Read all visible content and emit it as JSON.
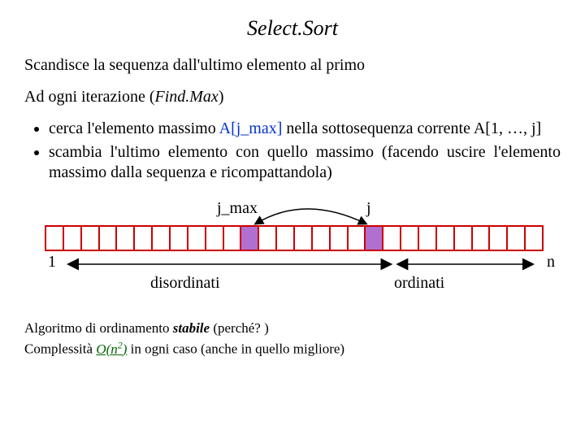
{
  "title": "Select.Sort",
  "para1": "Scandisce la sequenza dall'ultimo elemento al primo",
  "para2_pre": "Ad ogni iterazione (",
  "para2_it": "Find.Max",
  "para2_post": ")",
  "bullets": {
    "b1_a": "cerca l'elemento massimo ",
    "b1_blue": "A[j_max]",
    "b1_b": " nella sottosequenza corrente A[1, …, j]",
    "b2": "scambia l'ultimo elemento con quello massimo (facendo uscire l'elemento massimo dalla sequenza e ricompattandola)"
  },
  "diagram": {
    "jmax_label": "j_max",
    "j_label": "j",
    "one_label": "1",
    "n_label": "n",
    "disordinati": "disordinati",
    "ordinati": "ordinati",
    "n_cells": 28,
    "jmax_cell": 11,
    "j_cell": 18,
    "disordinati_end_cell": 19,
    "colors": {
      "border_red": "#cc0000",
      "fill_violet": "#b070d0",
      "fill_white": "#ffffff",
      "arrow_black": "#000000"
    }
  },
  "footer": {
    "line1_a": "Algoritmo di ordinamento ",
    "line1_bi": "stabile",
    "line1_b": " (perché? )",
    "line2_a": "Complessità ",
    "line2_green_pre": "O(n",
    "line2_green_sup": "2",
    "line2_green_post": ")",
    "line2_b": " in ogni caso (anche in quello migliore)"
  }
}
